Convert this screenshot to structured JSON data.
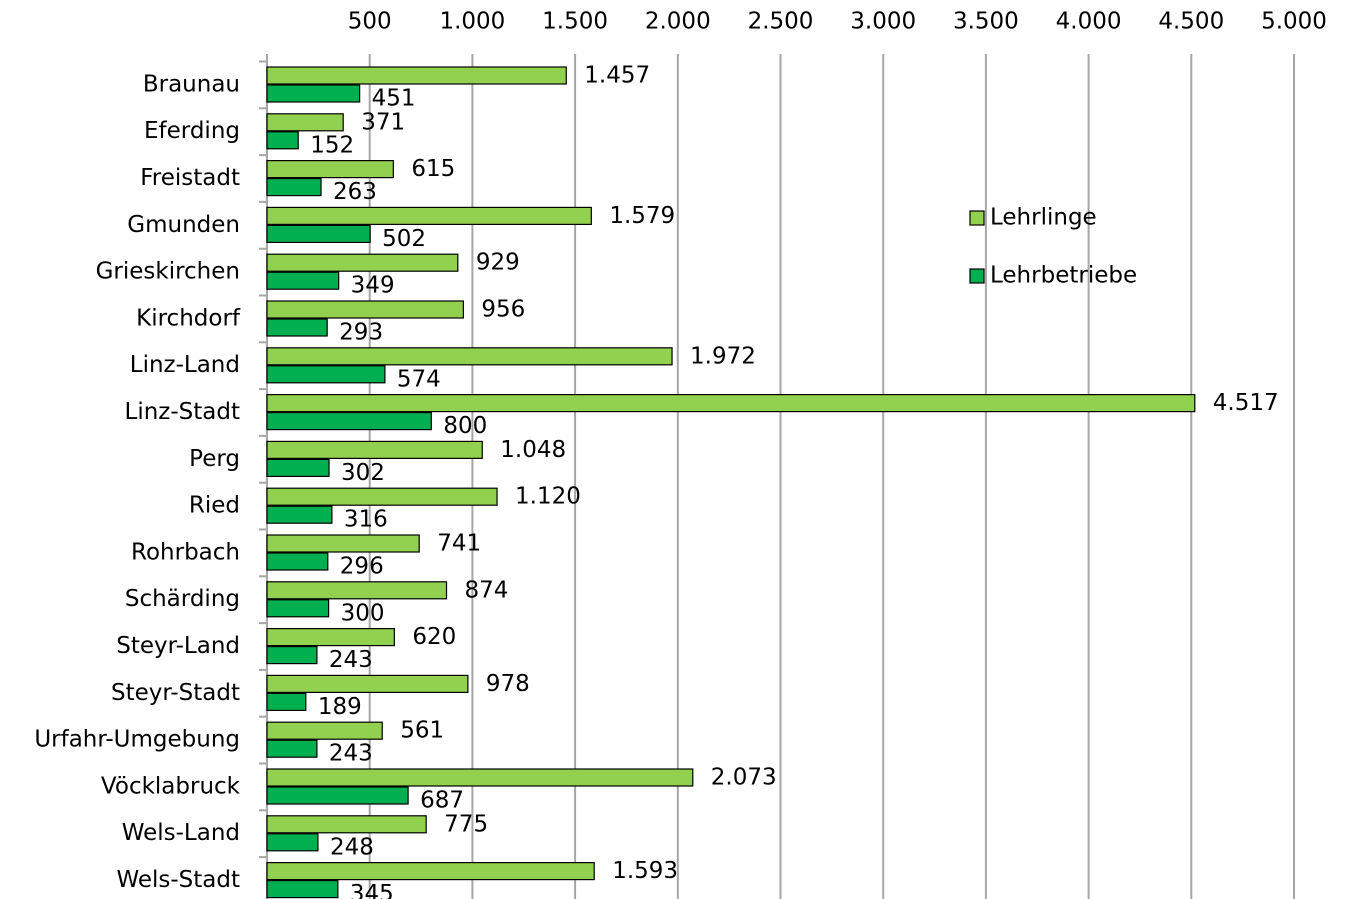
{
  "chart_data": {
    "type": "barh",
    "categories": [
      "Braunau",
      "Eferding",
      "Freistadt",
      "Gmunden",
      "Grieskirchen",
      "Kirchdorf",
      "Linz-Land",
      "Linz-Stadt",
      "Perg",
      "Ried",
      "Rohrbach",
      "Schärding",
      "Steyr-Land",
      "Steyr-Stadt",
      "Urfahr-Umgebung",
      "Vöcklabruck",
      "Wels-Land",
      "Wels-Stadt"
    ],
    "series": [
      {
        "name": "Lehrlinge",
        "color": "#92d050",
        "values": [
          1457,
          371,
          615,
          1579,
          929,
          956,
          1972,
          4517,
          1048,
          1120,
          741,
          874,
          620,
          978,
          561,
          2073,
          775,
          1593
        ],
        "value_labels": [
          "1.457",
          "371",
          "615",
          "1.579",
          "929",
          "956",
          "1.972",
          "4.517",
          "1.048",
          "1.120",
          "741",
          "874",
          "620",
          "978",
          "561",
          "2.073",
          "775",
          "1.593"
        ]
      },
      {
        "name": "Lehrbetriebe",
        "color": "#00b050",
        "values": [
          451,
          152,
          263,
          502,
          349,
          293,
          574,
          800,
          302,
          316,
          296,
          300,
          243,
          189,
          243,
          687,
          248,
          345
        ],
        "value_labels": [
          "451",
          "152",
          "263",
          "502",
          "349",
          "293",
          "574",
          "800",
          "302",
          "316",
          "296",
          "300",
          "243",
          "189",
          "243",
          "687",
          "248",
          "345"
        ]
      }
    ],
    "xlim": [
      0,
      5000
    ],
    "xticks": [
      500,
      {
        "value": 1000,
        "label": "1.000"
      },
      {
        "value": 1500,
        "label": "1.500"
      },
      {
        "value": 2000,
        "label": "2.000"
      },
      {
        "value": 2500,
        "label": "2.500"
      },
      {
        "value": 3000,
        "label": "3.000"
      },
      {
        "value": 3500,
        "label": "3.500"
      },
      {
        "value": 4000,
        "label": "4.000"
      },
      {
        "value": 4500,
        "label": "4.500"
      },
      {
        "value": 5000,
        "label": "5.000"
      }
    ],
    "grid": true,
    "legend": "right"
  }
}
